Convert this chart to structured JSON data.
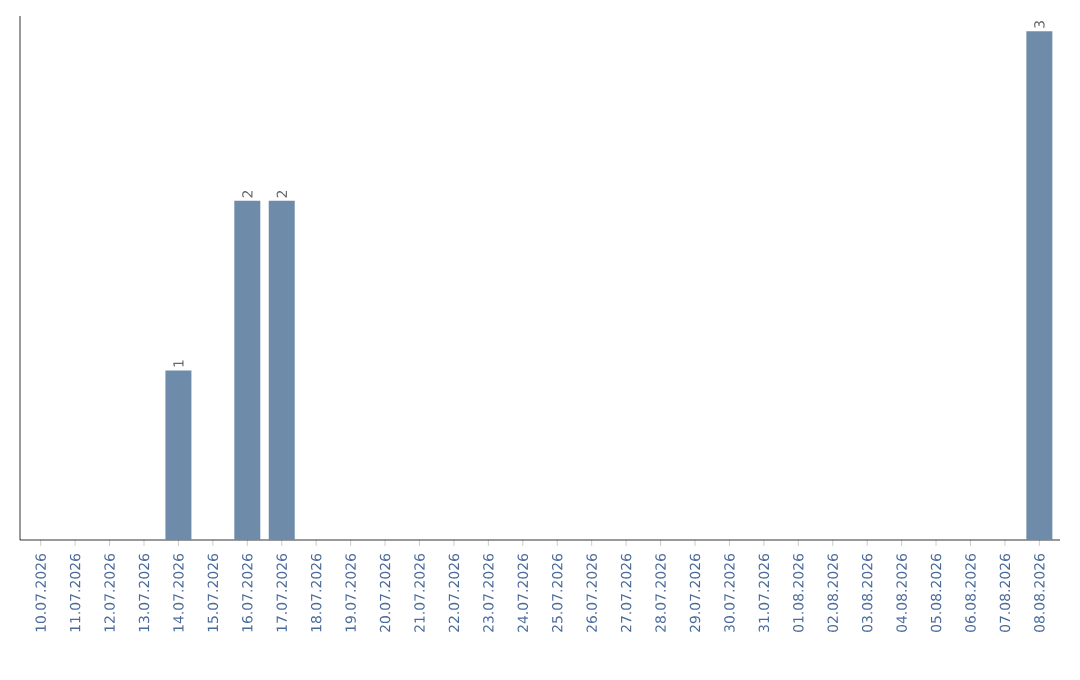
{
  "chart_data": {
    "type": "bar",
    "categories": [
      "10.07.2026",
      "11.07.2026",
      "12.07.2026",
      "13.07.2026",
      "14.07.2026",
      "15.07.2026",
      "16.07.2026",
      "17.07.2026",
      "18.07.2026",
      "19.07.2026",
      "20.07.2026",
      "21.07.2026",
      "22.07.2026",
      "23.07.2026",
      "24.07.2026",
      "25.07.2026",
      "26.07.2026",
      "27.07.2026",
      "28.07.2026",
      "29.07.2026",
      "30.07.2026",
      "31.07.2026",
      "01.08.2026",
      "02.08.2026",
      "03.08.2026",
      "04.08.2026",
      "05.08.2026",
      "06.08.2026",
      "07.08.2026",
      "08.08.2026"
    ],
    "values": [
      0,
      0,
      0,
      0,
      1,
      0,
      2,
      2,
      0,
      0,
      0,
      0,
      0,
      0,
      0,
      0,
      0,
      0,
      0,
      0,
      0,
      0,
      0,
      0,
      0,
      0,
      0,
      0,
      0,
      3
    ],
    "value_labels": [
      null,
      null,
      null,
      null,
      "1",
      null,
      "2",
      "2",
      null,
      null,
      null,
      null,
      null,
      null,
      null,
      null,
      null,
      null,
      null,
      null,
      null,
      null,
      null,
      null,
      null,
      null,
      null,
      null,
      null,
      "3"
    ],
    "color": "#6e8caa"
  }
}
